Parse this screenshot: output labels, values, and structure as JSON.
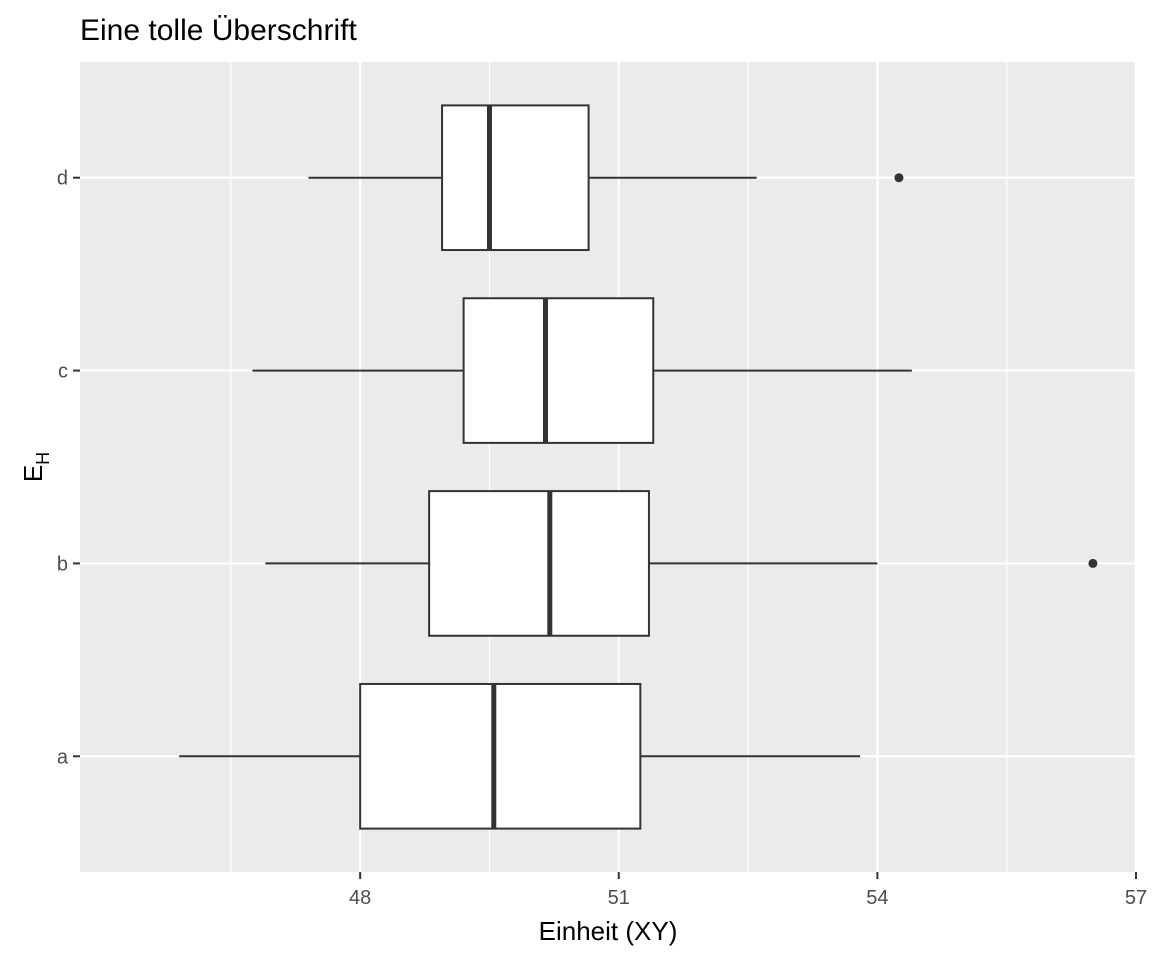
{
  "chart_data": {
    "type": "boxplot",
    "orientation": "horizontal",
    "title": "Eine tolle Überschrift",
    "xlabel": "Einheit (XY)",
    "ylabel_main": "E",
    "ylabel_sub": "H",
    "xlim": [
      45.9,
      57.0
    ],
    "x_major_ticks": [
      48,
      51,
      54,
      57
    ],
    "x_minor_ticks": [
      46.5,
      49.5,
      52.5,
      55.5
    ],
    "x_tick_labels": [
      "48",
      "51",
      "54",
      "57"
    ],
    "categories": [
      "a",
      "b",
      "c",
      "d"
    ],
    "boxes": [
      {
        "category": "a",
        "whisker_low": 45.9,
        "q1": 48.0,
        "median": 49.55,
        "q3": 51.25,
        "whisker_high": 53.8,
        "outliers": []
      },
      {
        "category": "b",
        "whisker_low": 46.9,
        "q1": 48.8,
        "median": 50.2,
        "q3": 51.35,
        "whisker_high": 54.0,
        "outliers": [
          56.5
        ]
      },
      {
        "category": "c",
        "whisker_low": 46.75,
        "q1": 49.2,
        "median": 50.15,
        "q3": 51.4,
        "whisker_high": 54.4,
        "outliers": []
      },
      {
        "category": "d",
        "whisker_low": 47.4,
        "q1": 48.95,
        "median": 49.5,
        "q3": 50.65,
        "whisker_high": 52.6,
        "outliers": [
          54.25
        ]
      }
    ],
    "colors": {
      "panel": "#ebebeb",
      "grid": "#ffffff",
      "box_fill": "#ffffff",
      "box_line": "#333333",
      "tick_text": "#4d4d4d",
      "tick_mark": "#333333"
    }
  }
}
